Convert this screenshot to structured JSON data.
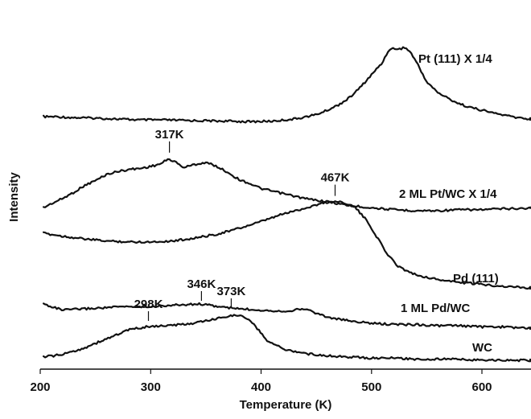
{
  "chart_data": {
    "type": "line",
    "title": "",
    "xlabel": "Temperature (K)",
    "ylabel": "Intensity",
    "xlim": [
      200,
      650
    ],
    "x_ticks": [
      "200",
      "300",
      "400",
      "500",
      "600"
    ],
    "y_ticks_shown": false,
    "grid": false,
    "colors": {
      "line": "#111111",
      "background": "#ffffff"
    },
    "series": [
      {
        "name": "Pt (111) X 1/4",
        "points": [
          [
            203,
            0.63
          ],
          [
            215,
            0.63
          ],
          [
            230,
            0.58
          ],
          [
            250,
            0.55
          ],
          [
            270,
            0.5
          ],
          [
            290,
            0.45
          ],
          [
            310,
            0.45
          ],
          [
            330,
            0.42
          ],
          [
            350,
            0.4
          ],
          [
            370,
            0.38
          ],
          [
            390,
            0.35
          ],
          [
            410,
            0.38
          ],
          [
            430,
            0.5
          ],
          [
            440,
            0.62
          ],
          [
            450,
            0.75
          ],
          [
            460,
            1.0
          ],
          [
            470,
            1.3
          ],
          [
            480,
            1.7
          ],
          [
            490,
            2.3
          ],
          [
            500,
            3.0
          ],
          [
            510,
            3.7
          ],
          [
            515,
            4.35
          ],
          [
            520,
            4.5
          ],
          [
            525,
            4.45
          ],
          [
            530,
            4.55
          ],
          [
            535,
            4.3
          ],
          [
            540,
            3.8
          ],
          [
            545,
            3.2
          ],
          [
            550,
            2.6
          ],
          [
            560,
            2.0
          ],
          [
            570,
            1.65
          ],
          [
            580,
            1.35
          ],
          [
            590,
            1.15
          ],
          [
            600,
            1.0
          ],
          [
            610,
            0.85
          ],
          [
            620,
            0.72
          ],
          [
            630,
            0.6
          ],
          [
            640,
            0.52
          ],
          [
            650,
            0.5
          ]
        ]
      },
      {
        "name": "2 ML Pt/WC X 1/4",
        "points": [
          [
            203,
            0.15
          ],
          [
            210,
            0.35
          ],
          [
            220,
            0.6
          ],
          [
            230,
            0.9
          ],
          [
            240,
            1.25
          ],
          [
            250,
            1.5
          ],
          [
            260,
            1.8
          ],
          [
            270,
            1.95
          ],
          [
            280,
            2.05
          ],
          [
            290,
            2.1
          ],
          [
            300,
            2.2
          ],
          [
            310,
            2.35
          ],
          [
            315,
            2.55
          ],
          [
            320,
            2.5
          ],
          [
            330,
            2.15
          ],
          [
            340,
            2.3
          ],
          [
            350,
            2.4
          ],
          [
            360,
            2.2
          ],
          [
            370,
            1.9
          ],
          [
            380,
            1.55
          ],
          [
            390,
            1.35
          ],
          [
            400,
            1.1
          ],
          [
            420,
            0.85
          ],
          [
            440,
            0.6
          ],
          [
            460,
            0.45
          ],
          [
            480,
            0.25
          ],
          [
            500,
            0.15
          ],
          [
            520,
            0.05
          ],
          [
            540,
            0.0
          ],
          [
            560,
            0.0
          ],
          [
            580,
            0.05
          ],
          [
            600,
            0.05
          ],
          [
            620,
            0.1
          ],
          [
            640,
            0.12
          ],
          [
            650,
            0.15
          ]
        ]
      },
      {
        "name": "Pd (111)",
        "points": [
          [
            203,
            3.0
          ],
          [
            220,
            2.85
          ],
          [
            240,
            2.7
          ],
          [
            260,
            2.6
          ],
          [
            280,
            2.55
          ],
          [
            300,
            2.55
          ],
          [
            320,
            2.6
          ],
          [
            340,
            2.75
          ],
          [
            360,
            2.95
          ],
          [
            380,
            3.25
          ],
          [
            400,
            3.6
          ],
          [
            420,
            4.0
          ],
          [
            440,
            4.3
          ],
          [
            455,
            4.55
          ],
          [
            465,
            4.65
          ],
          [
            475,
            4.6
          ],
          [
            485,
            4.35
          ],
          [
            495,
            3.7
          ],
          [
            505,
            2.8
          ],
          [
            515,
            1.85
          ],
          [
            525,
            1.25
          ],
          [
            540,
            0.85
          ],
          [
            560,
            0.6
          ],
          [
            580,
            0.45
          ],
          [
            600,
            0.35
          ],
          [
            620,
            0.25
          ],
          [
            640,
            0.18
          ],
          [
            650,
            0.15
          ]
        ]
      },
      {
        "name": "1 ML Pd/WC",
        "points": [
          [
            203,
            1.0
          ],
          [
            220,
            0.75
          ],
          [
            240,
            0.8
          ],
          [
            260,
            0.85
          ],
          [
            280,
            0.9
          ],
          [
            300,
            0.9
          ],
          [
            320,
            0.95
          ],
          [
            346,
            1.0
          ],
          [
            360,
            0.9
          ],
          [
            380,
            0.8
          ],
          [
            400,
            0.75
          ],
          [
            420,
            0.7
          ],
          [
            440,
            0.8
          ],
          [
            460,
            0.45
          ],
          [
            480,
            0.3
          ],
          [
            500,
            0.2
          ],
          [
            520,
            0.15
          ],
          [
            540,
            0.15
          ],
          [
            560,
            0.1
          ],
          [
            580,
            0.1
          ],
          [
            600,
            0.05
          ],
          [
            620,
            0.05
          ],
          [
            640,
            0.0
          ],
          [
            650,
            0.0
          ]
        ]
      },
      {
        "name": "WC",
        "points": [
          [
            203,
            0.15
          ],
          [
            220,
            0.25
          ],
          [
            240,
            0.55
          ],
          [
            260,
            0.95
          ],
          [
            280,
            1.35
          ],
          [
            298,
            1.5
          ],
          [
            320,
            1.55
          ],
          [
            340,
            1.65
          ],
          [
            360,
            1.85
          ],
          [
            373,
            2.0
          ],
          [
            385,
            1.95
          ],
          [
            395,
            1.5
          ],
          [
            405,
            0.9
          ],
          [
            420,
            0.5
          ],
          [
            440,
            0.3
          ],
          [
            460,
            0.2
          ],
          [
            480,
            0.15
          ],
          [
            500,
            0.1
          ],
          [
            520,
            0.1
          ],
          [
            540,
            0.05
          ],
          [
            560,
            0.05
          ],
          [
            580,
            0.05
          ],
          [
            600,
            0.0
          ],
          [
            620,
            0.0
          ],
          [
            650,
            0.0
          ]
        ]
      }
    ],
    "annotations": [
      {
        "label": "317K",
        "x": 317,
        "series": "2 ML Pt/WC X 1/4"
      },
      {
        "label": "467K",
        "x": 467,
        "series": "Pd (111)"
      },
      {
        "label": "346K",
        "x": 346,
        "series": "1 ML Pd/WC"
      },
      {
        "label": "298K",
        "x": 298,
        "series": "WC"
      },
      {
        "label": "373K",
        "x": 373,
        "series": "WC"
      }
    ]
  }
}
